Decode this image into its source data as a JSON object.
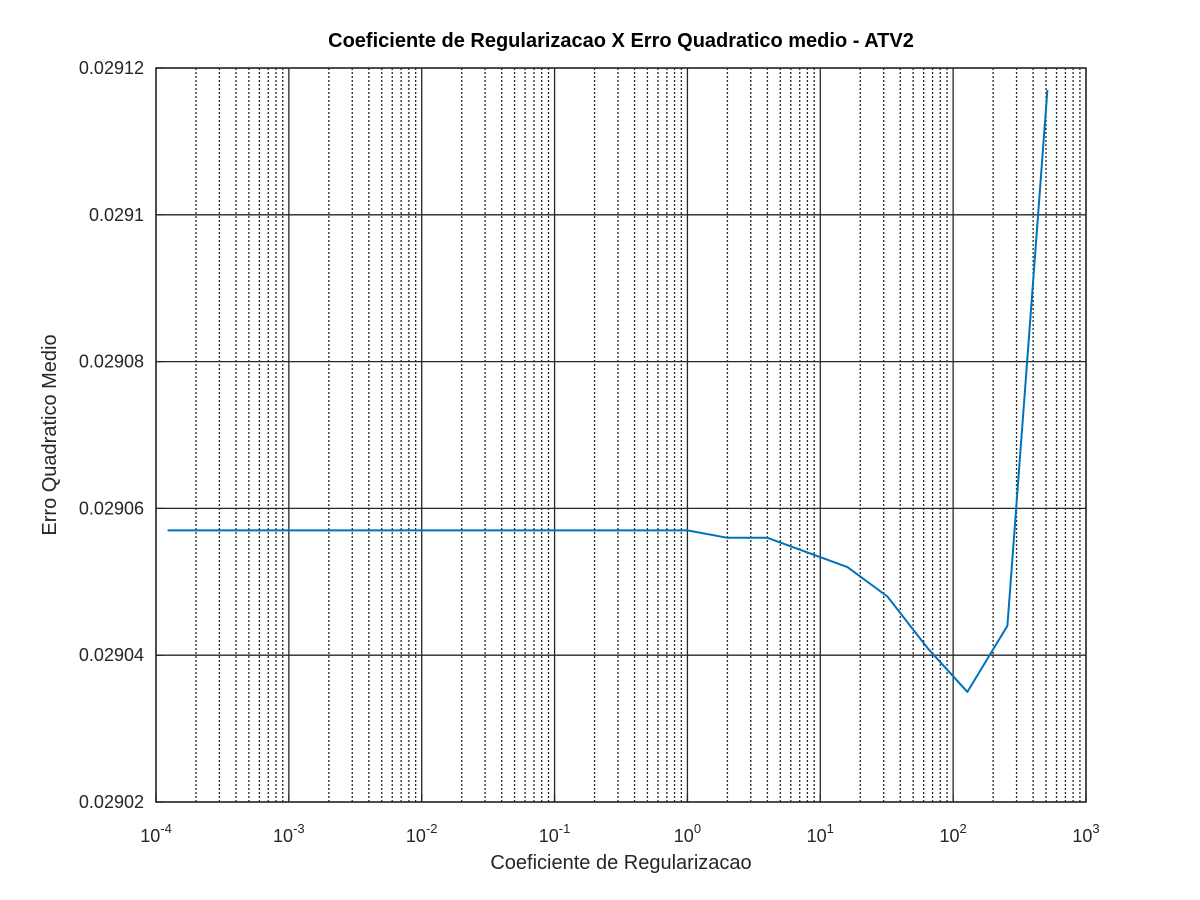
{
  "chart_data": {
    "type": "line",
    "title": "Coeficiente de Regularizacao X Erro Quadratico medio - ATV2",
    "xlabel": "Coeficiente de Regularizacao",
    "ylabel": "Erro Quadratico Medio",
    "xscale": "log",
    "xlim": [
      0.0001,
      1000
    ],
    "ylim": [
      0.02902,
      0.02912
    ],
    "grid": true,
    "minor_grid": true,
    "x_ticks": [
      {
        "base": "10",
        "exp": "-4",
        "value": 0.0001
      },
      {
        "base": "10",
        "exp": "-3",
        "value": 0.001
      },
      {
        "base": "10",
        "exp": "-2",
        "value": 0.01
      },
      {
        "base": "10",
        "exp": "-1",
        "value": 0.1
      },
      {
        "base": "10",
        "exp": "0",
        "value": 1
      },
      {
        "base": "10",
        "exp": "1",
        "value": 10
      },
      {
        "base": "10",
        "exp": "2",
        "value": 100
      },
      {
        "base": "10",
        "exp": "3",
        "value": 1000
      }
    ],
    "y_ticks": [
      {
        "label": "0.02902",
        "value": 0.02902
      },
      {
        "label": "0.02904",
        "value": 0.02904
      },
      {
        "label": "0.02906",
        "value": 0.02906
      },
      {
        "label": "0.02908",
        "value": 0.02908
      },
      {
        "label": "0.0291",
        "value": 0.0291
      },
      {
        "label": "0.02912",
        "value": 0.02912
      }
    ],
    "series": [
      {
        "color": "#0072BD",
        "x": [
          0.000122,
          0.000244,
          0.000488,
          0.000977,
          0.00195,
          0.00391,
          0.00781,
          0.0156,
          0.0313,
          0.0625,
          0.125,
          0.25,
          0.5,
          1,
          2,
          4,
          8,
          16,
          32,
          64,
          128,
          256,
          512
        ],
        "y": [
          0.029057,
          0.029057,
          0.029057,
          0.029057,
          0.029057,
          0.029057,
          0.029057,
          0.029057,
          0.029057,
          0.029057,
          0.029057,
          0.029057,
          0.029057,
          0.029057,
          0.029056,
          0.029056,
          0.029054,
          0.029052,
          0.029048,
          0.029041,
          0.029035,
          0.029044,
          0.029117
        ]
      }
    ]
  }
}
